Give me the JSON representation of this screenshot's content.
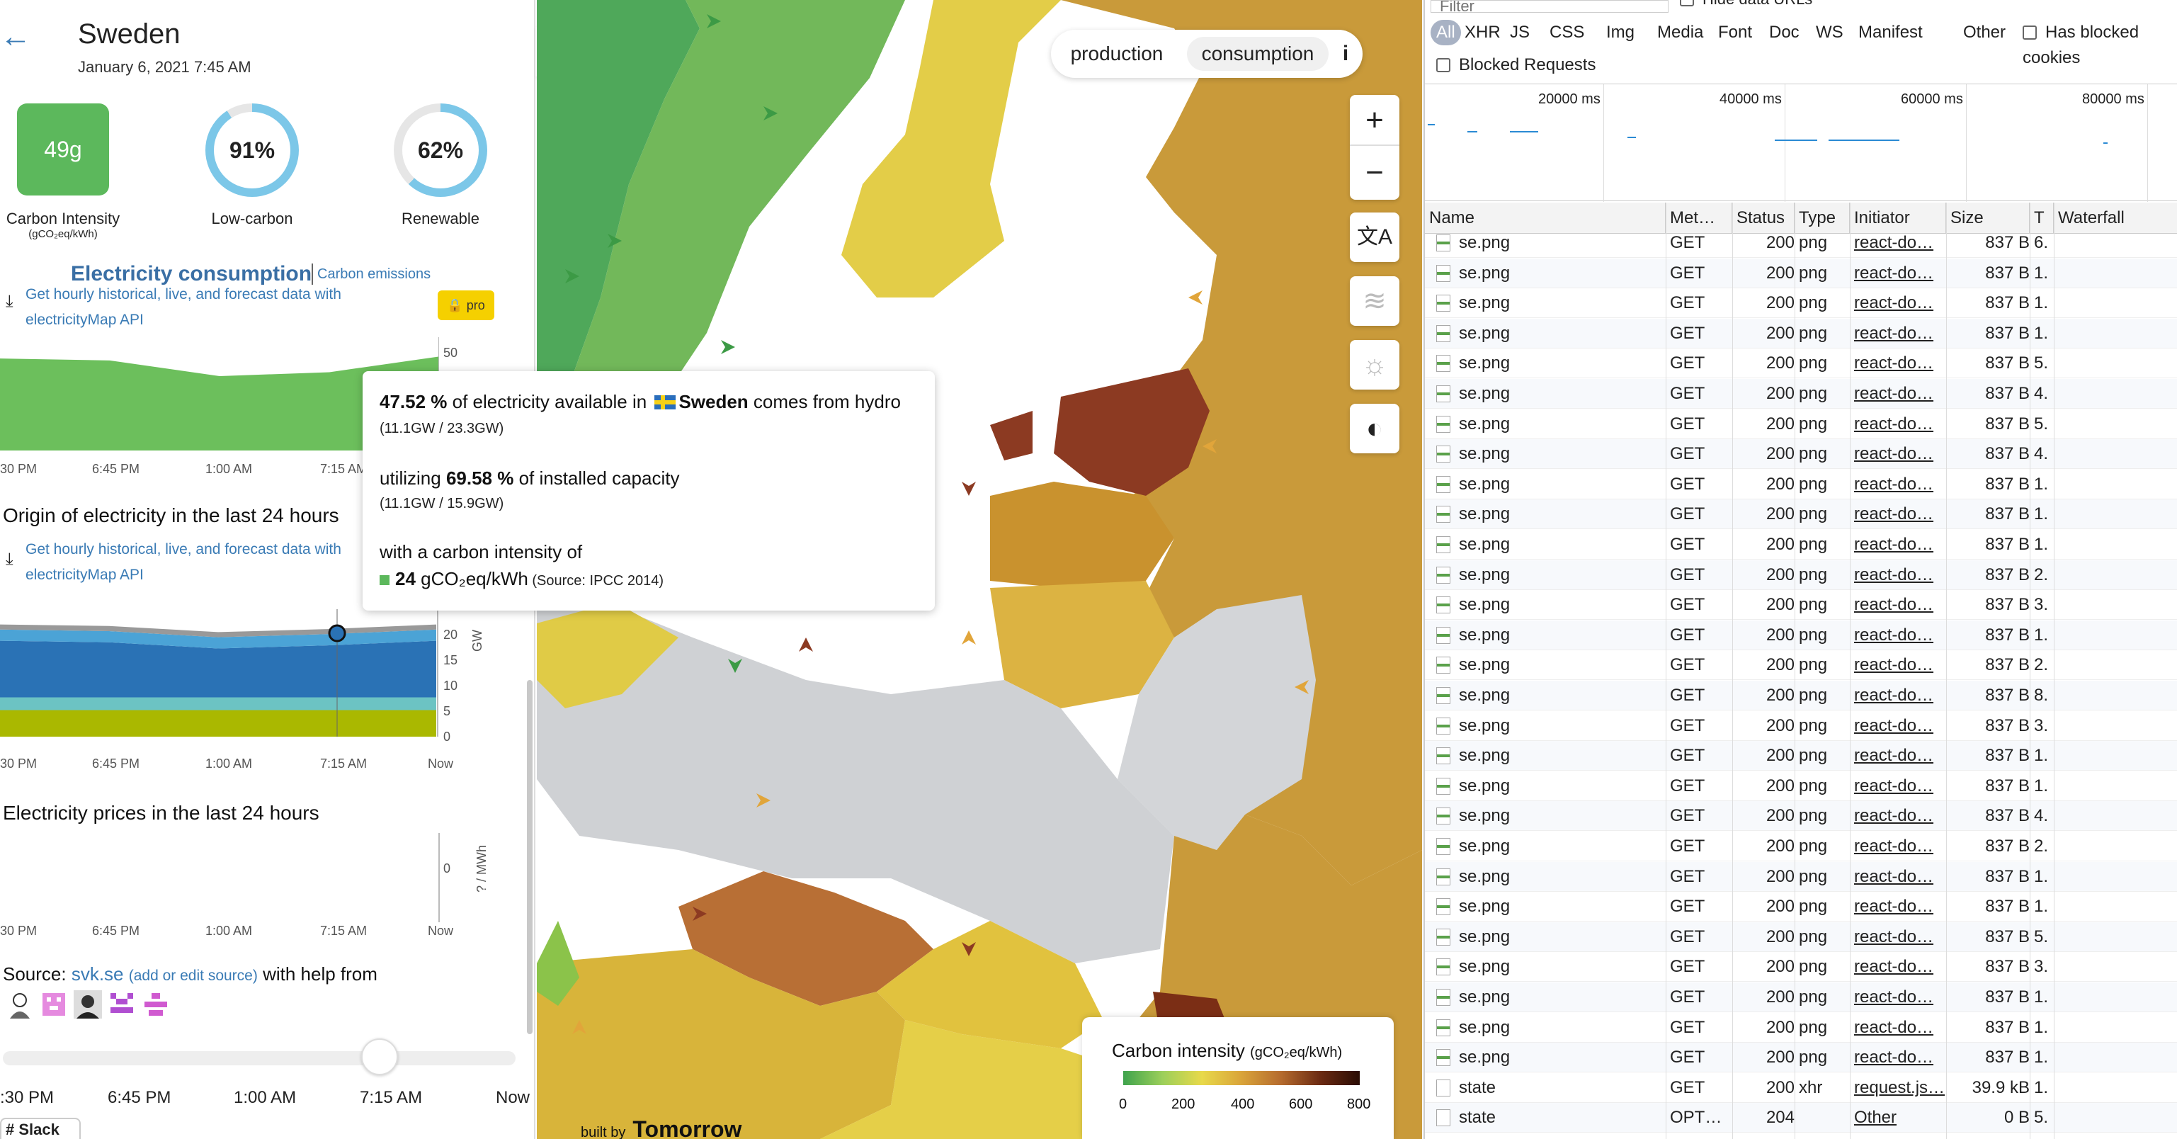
{
  "zone": {
    "name": "Sweden",
    "datetime": "January 6, 2021 7:45 AM",
    "carbon_intensity_value": "49g",
    "carbon_intensity_label": "Carbon Intensity",
    "carbon_intensity_unit": "(gCO₂eq/kWh)",
    "low_carbon_value": "91%",
    "low_carbon_fraction": 0.91,
    "low_carbon_label": "Low-carbon",
    "renewable_value": "62%",
    "renewable_fraction": 0.62,
    "renewable_label": "Renewable"
  },
  "panel": {
    "title": "Electricity consumption",
    "title_alt": "Carbon emissions",
    "api_link_1": "Get hourly historical, live, and forecast data with",
    "api_link_2": "electricityMap API",
    "pro_badge": "pro",
    "origin_title": "Origin of electricity in the last 24 hours",
    "prices_title": "Electricity prices in the last 24 hours",
    "source_prefix": "Source: ",
    "source_name": "svk.se",
    "source_edit": "(add or edit source)",
    "source_suffix": " with help from",
    "gw_unit": "GW",
    "price_unit": "? / MWh",
    "slack": "Slack"
  },
  "time_ticks": [
    "30 PM",
    "6:45 PM",
    "1:00 AM",
    "7:15 AM",
    "Now"
  ],
  "slider_ticks": [
    ":30 PM",
    "6:45 PM",
    "1:00 AM",
    "7:15 AM",
    "Now"
  ],
  "slider_position": 0.76,
  "chart_data": [
    {
      "type": "area",
      "title": "Electricity consumption",
      "x": [
        "30 PM",
        "6:45 PM",
        "1:00 AM",
        "7:15 AM",
        "Now"
      ],
      "y_ticks": [
        50
      ],
      "series": [
        {
          "values": [
            47,
            46,
            38,
            40,
            48
          ]
        }
      ]
    },
    {
      "type": "area",
      "title": "Origin of electricity in the last 24 hours",
      "x": [
        "30 PM",
        "6:45 PM",
        "1:00 AM",
        "7:15 AM",
        "Now"
      ],
      "ylabel": "GW",
      "y_ticks": [
        0,
        5,
        10,
        15,
        20
      ],
      "ylim": [
        0,
        25
      ],
      "series": [
        {
          "values": [
            5.2,
            5.2,
            5.2,
            5.2,
            5.2
          ],
          "color": "#aab800"
        },
        {
          "values": [
            2.5,
            2.5,
            2.5,
            2.5,
            2.5
          ],
          "color": "#6cc3c3"
        },
        {
          "values": [
            11.1,
            10.8,
            9.6,
            10.2,
            11.1
          ],
          "color": "#2a72b5"
        },
        {
          "values": [
            2.2,
            2.2,
            2.2,
            2.2,
            2.2
          ],
          "color": "#4ba3d6"
        },
        {
          "values": [
            1.0,
            1.0,
            1.0,
            1.0,
            1.0
          ],
          "color": "#999999"
        }
      ]
    },
    {
      "type": "line",
      "title": "Electricity prices in the last 24 hours",
      "x": [
        "30 PM",
        "6:45 PM",
        "1:00 AM",
        "7:15 AM",
        "Now"
      ],
      "ylabel": "? / MWh",
      "y_ticks": [
        0
      ],
      "series": []
    }
  ],
  "map": {
    "toggle_production": "production",
    "toggle_consumption": "consumption",
    "info": "i",
    "zoom_in": "+",
    "zoom_out": "−",
    "translate": "文A",
    "wind": "≋",
    "sun": "☼",
    "theme": "◐",
    "legend_title": "Carbon intensity",
    "legend_unit": "(gCO₂eq/kWh)",
    "legend_ticks": [
      "0",
      "200",
      "400",
      "600",
      "800"
    ],
    "attribution_prefix": "built by",
    "attribution_name": "Tomorrow"
  },
  "tooltip": {
    "pct": "47.52 %",
    "text1": " of electricity available in ",
    "country": "Sweden",
    "text2": " comes from hydro",
    "line1_sub": "(11.1GW / 23.3GW)",
    "util_prefix": "utilizing ",
    "util_pct": "69.58 %",
    "util_suffix": " of installed capacity",
    "line2_sub": "(11.1GW / 15.9GW)",
    "ci_text": "with a carbon intensity of",
    "ci_value": "24",
    "ci_unit": " gCO₂eq/kWh",
    "ci_source": " (Source: IPCC 2014)"
  },
  "devtools": {
    "filter_placeholder": "Filter",
    "hide_data_urls": "Hide data URLs",
    "types": [
      "All",
      "XHR",
      "JS",
      "CSS",
      "Img",
      "Media",
      "Font",
      "Doc",
      "WS",
      "Manifest",
      "Other"
    ],
    "has_blocked_cookies": "Has blocked cookies",
    "blocked_requests": "Blocked Requests",
    "timeline_labels": [
      "20000 ms",
      "40000 ms",
      "60000 ms",
      "80000 ms"
    ],
    "columns": [
      "Name",
      "Met…",
      "Status",
      "Type",
      "Initiator",
      "Size",
      "T",
      "Waterfall"
    ],
    "rows": [
      [
        "se.png",
        "GET",
        "200",
        "png",
        "react-do…",
        "837 B",
        "6."
      ],
      [
        "se.png",
        "GET",
        "200",
        "png",
        "react-do…",
        "837 B",
        "1."
      ],
      [
        "se.png",
        "GET",
        "200",
        "png",
        "react-do…",
        "837 B",
        "1."
      ],
      [
        "se.png",
        "GET",
        "200",
        "png",
        "react-do…",
        "837 B",
        "1."
      ],
      [
        "se.png",
        "GET",
        "200",
        "png",
        "react-do…",
        "837 B",
        "5."
      ],
      [
        "se.png",
        "GET",
        "200",
        "png",
        "react-do…",
        "837 B",
        "4."
      ],
      [
        "se.png",
        "GET",
        "200",
        "png",
        "react-do…",
        "837 B",
        "5."
      ],
      [
        "se.png",
        "GET",
        "200",
        "png",
        "react-do…",
        "837 B",
        "4."
      ],
      [
        "se.png",
        "GET",
        "200",
        "png",
        "react-do…",
        "837 B",
        "1."
      ],
      [
        "se.png",
        "GET",
        "200",
        "png",
        "react-do…",
        "837 B",
        "1."
      ],
      [
        "se.png",
        "GET",
        "200",
        "png",
        "react-do…",
        "837 B",
        "1."
      ],
      [
        "se.png",
        "GET",
        "200",
        "png",
        "react-do…",
        "837 B",
        "2."
      ],
      [
        "se.png",
        "GET",
        "200",
        "png",
        "react-do…",
        "837 B",
        "3."
      ],
      [
        "se.png",
        "GET",
        "200",
        "png",
        "react-do…",
        "837 B",
        "1."
      ],
      [
        "se.png",
        "GET",
        "200",
        "png",
        "react-do…",
        "837 B",
        "2."
      ],
      [
        "se.png",
        "GET",
        "200",
        "png",
        "react-do…",
        "837 B",
        "8."
      ],
      [
        "se.png",
        "GET",
        "200",
        "png",
        "react-do…",
        "837 B",
        "3."
      ],
      [
        "se.png",
        "GET",
        "200",
        "png",
        "react-do…",
        "837 B",
        "1."
      ],
      [
        "se.png",
        "GET",
        "200",
        "png",
        "react-do…",
        "837 B",
        "1."
      ],
      [
        "se.png",
        "GET",
        "200",
        "png",
        "react-do…",
        "837 B",
        "4."
      ],
      [
        "se.png",
        "GET",
        "200",
        "png",
        "react-do…",
        "837 B",
        "2."
      ],
      [
        "se.png",
        "GET",
        "200",
        "png",
        "react-do…",
        "837 B",
        "1."
      ],
      [
        "se.png",
        "GET",
        "200",
        "png",
        "react-do…",
        "837 B",
        "1."
      ],
      [
        "se.png",
        "GET",
        "200",
        "png",
        "react-do…",
        "837 B",
        "5."
      ],
      [
        "se.png",
        "GET",
        "200",
        "png",
        "react-do…",
        "837 B",
        "3."
      ],
      [
        "se.png",
        "GET",
        "200",
        "png",
        "react-do…",
        "837 B",
        "1."
      ],
      [
        "se.png",
        "GET",
        "200",
        "png",
        "react-do…",
        "837 B",
        "1."
      ],
      [
        "se.png",
        "GET",
        "200",
        "png",
        "react-do…",
        "837 B",
        "1."
      ],
      [
        "state",
        "GET",
        "200",
        "xhr",
        "request.js…",
        "39.9 kB",
        "1."
      ],
      [
        "state",
        "OPT…",
        "204",
        "",
        "Other",
        "0 B",
        "5."
      ]
    ]
  }
}
